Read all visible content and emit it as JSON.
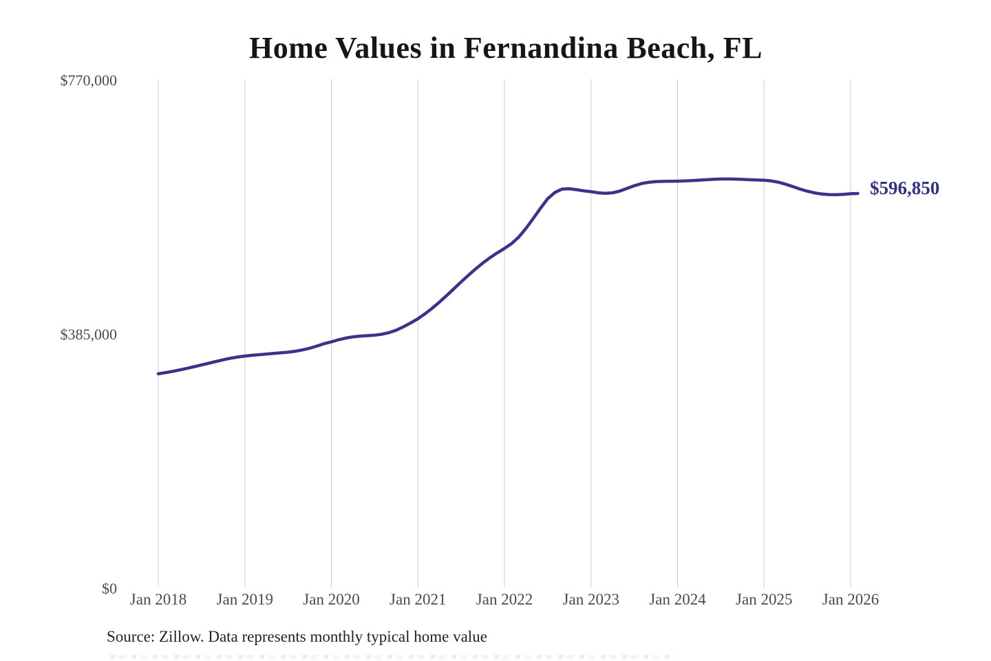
{
  "source_note": "Source: Zillow. Data represents monthly typical home value",
  "colors": {
    "line": "#3b3389",
    "latest_label_text": "#32337f",
    "grid": "#cccccc",
    "tick_text": "#4a4a4a",
    "title_text": "#161616",
    "source_text": "#222222",
    "background": "#ffffff"
  },
  "chart_data": {
    "type": "line",
    "title": "Home Values in Fernandina Beach, FL",
    "xlabel": "",
    "ylabel": "",
    "x_unit": "month",
    "x_start": "Jan 2018",
    "x_end": "Feb 2026",
    "x_tick_labels": [
      "Jan 2018",
      "Jan 2019",
      "Jan 2020",
      "Jan 2021",
      "Jan 2022",
      "Jan 2023",
      "Jan 2024",
      "Jan 2025",
      "Jan 2026"
    ],
    "y_ticks": [
      {
        "label": "$0",
        "value": 0
      },
      {
        "label": "$385,000",
        "value": 385000
      },
      {
        "label": "$770,000",
        "value": 770000
      }
    ],
    "ylim": [
      0,
      770000
    ],
    "grid": "vertical-only",
    "legend": "none",
    "latest": {
      "label": "$596,850",
      "value": 596850
    },
    "series": [
      {
        "name": "Typical home value",
        "frequency": "monthly",
        "values": [
          323500,
          325300,
          327300,
          329500,
          331900,
          334400,
          337000,
          339600,
          342200,
          344700,
          347100,
          349000,
          350500,
          351600,
          352600,
          353500,
          354400,
          355400,
          356300,
          357800,
          359800,
          362400,
          365600,
          369200,
          372000,
          375200,
          377700,
          379600,
          380700,
          381400,
          382100,
          383500,
          385900,
          389700,
          394800,
          400700,
          407000,
          414600,
          423100,
          432400,
          442300,
          452500,
          462800,
          472900,
          482500,
          491400,
          499500,
          506800,
          513500,
          521000,
          531000,
          544000,
          559000,
          574500,
          589000,
          598500,
          603500,
          604000,
          602500,
          600800,
          599500,
          597800,
          597000,
          597800,
          600500,
          604500,
          608500,
          611800,
          613800,
          614800,
          615200,
          615400,
          615500,
          615800,
          616300,
          617000,
          617700,
          618300,
          618700,
          618800,
          618600,
          618200,
          617700,
          617200,
          616800,
          615800,
          613800,
          610800,
          607200,
          603500,
          600200,
          597700,
          596000,
          595100,
          595000,
          595600,
          596400,
          596850
        ]
      }
    ]
  }
}
